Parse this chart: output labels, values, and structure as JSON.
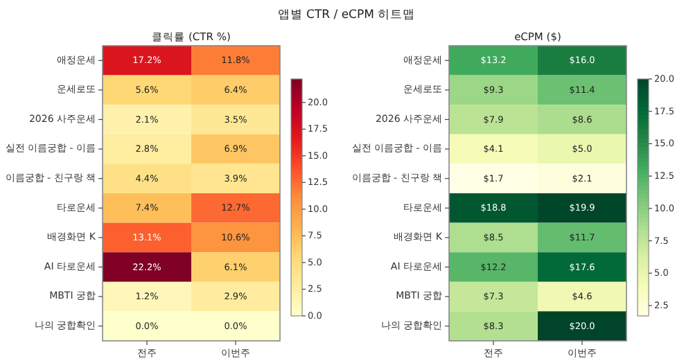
{
  "chart_data": [
    {
      "type": "heatmap",
      "title": "클릭률 (CTR %)",
      "annotations": [
        "앱별 CTR / eCPM 히트맵"
      ],
      "categories": [
        "전주",
        "이번주"
      ],
      "y_categories": [
        "애정운세",
        "운세로또",
        "2026 사주운세",
        "실전 이름궁합 - 이름",
        "이름궁합 - 친구랑 책",
        "타로운세",
        "배경화면 K",
        "AI 타로운세",
        "MBTI 궁합",
        "나의 궁합확인"
      ],
      "cells": [
        [
          17.2,
          11.8
        ],
        [
          5.6,
          6.4
        ],
        [
          2.1,
          3.5
        ],
        [
          2.8,
          6.9
        ],
        [
          4.4,
          3.9
        ],
        [
          7.4,
          12.7
        ],
        [
          13.1,
          10.6
        ],
        [
          22.2,
          6.1
        ],
        [
          1.2,
          2.9
        ],
        [
          0.0,
          0.0
        ]
      ],
      "cell_labels": [
        [
          "17.2%",
          "11.8%"
        ],
        [
          "5.6%",
          "6.4%"
        ],
        [
          "2.1%",
          "3.5%"
        ],
        [
          "2.8%",
          "6.9%"
        ],
        [
          "4.4%",
          "3.9%"
        ],
        [
          "7.4%",
          "12.7%"
        ],
        [
          "13.1%",
          "10.6%"
        ],
        [
          "22.2%",
          "6.1%"
        ],
        [
          "1.2%",
          "2.9%"
        ],
        [
          "0.0%",
          "0.0%"
        ]
      ],
      "clim": [
        0,
        22.2
      ],
      "cticks": [
        {
          "value": 0,
          "label": "0.0"
        },
        {
          "value": 2.5,
          "label": "2.5"
        },
        {
          "value": 5,
          "label": "5.0"
        },
        {
          "value": 7.5,
          "label": "7.5"
        },
        {
          "value": 10,
          "label": "10.0"
        },
        {
          "value": 12.5,
          "label": "12.5"
        },
        {
          "value": 15,
          "label": "15.0"
        },
        {
          "value": 17.5,
          "label": "17.5"
        },
        {
          "value": 20,
          "label": "20.0"
        }
      ]
    },
    {
      "type": "heatmap",
      "title": "eCPM ($)",
      "categories": [
        "전주",
        "이번주"
      ],
      "y_categories": [
        "애정운세",
        "운세로또",
        "2026 사주운세",
        "실전 이름궁합 - 이름",
        "이름궁합 - 친구랑 책",
        "타로운세",
        "배경화면 K",
        "AI 타로운세",
        "MBTI 궁합",
        "나의 궁합확인"
      ],
      "cells": [
        [
          13.2,
          16.0
        ],
        [
          9.3,
          11.4
        ],
        [
          7.9,
          8.6
        ],
        [
          4.1,
          5.0
        ],
        [
          1.7,
          2.1
        ],
        [
          18.8,
          19.9
        ],
        [
          8.5,
          11.7
        ],
        [
          12.2,
          17.6
        ],
        [
          7.3,
          4.6
        ],
        [
          8.3,
          20.0
        ]
      ],
      "cell_labels": [
        [
          "$13.2",
          "$16.0"
        ],
        [
          "$9.3",
          "$11.4"
        ],
        [
          "$7.9",
          "$8.6"
        ],
        [
          "$4.1",
          "$5.0"
        ],
        [
          "$1.7",
          "$2.1"
        ],
        [
          "$18.8",
          "$19.9"
        ],
        [
          "$8.5",
          "$11.7"
        ],
        [
          "$12.2",
          "$17.6"
        ],
        [
          "$7.3",
          "$4.6"
        ],
        [
          "$8.3",
          "$20.0"
        ]
      ],
      "clim": [
        1.7,
        20.0
      ],
      "cticks": [
        {
          "value": 2.5,
          "label": "2.5"
        },
        {
          "value": 5,
          "label": "5.0"
        },
        {
          "value": 7.5,
          "label": "7.5"
        },
        {
          "value": 10,
          "label": "10.0"
        },
        {
          "value": 12.5,
          "label": "12.5"
        },
        {
          "value": 15,
          "label": "15.0"
        },
        {
          "value": 17.5,
          "label": "17.5"
        },
        {
          "value": 20,
          "label": "20.0"
        }
      ]
    }
  ]
}
